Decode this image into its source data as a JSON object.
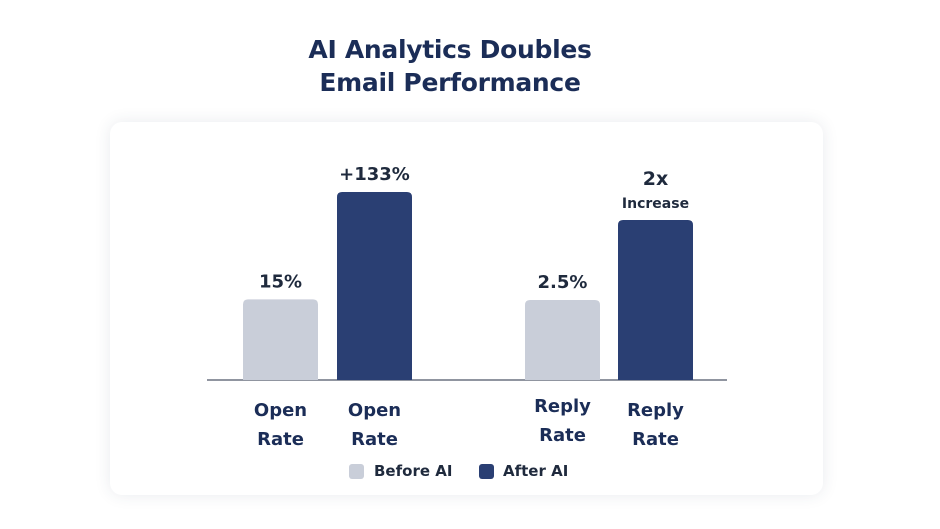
{
  "title_lines": [
    "AI Analytics Doubles",
    "Email Performance"
  ],
  "colors": {
    "before": "#c9ced9",
    "after": "#2a3f73",
    "title": "#1b2d57",
    "axis": "#6b7280"
  },
  "chart_data": {
    "type": "bar",
    "title": "AI Analytics Doubles Email Performance",
    "groups": [
      {
        "name": "Open Rate",
        "bars": [
          {
            "series": "Before AI",
            "category": [
              "Open",
              "Rate"
            ],
            "value": 15,
            "label": [
              "15%"
            ]
          },
          {
            "series": "After AI",
            "category": [
              "Open",
              "Rate"
            ],
            "value": 35,
            "label": [
              "+133%"
            ]
          }
        ]
      },
      {
        "name": "Reply Rate",
        "bars": [
          {
            "series": "Before AI",
            "category": [
              "Reply",
              "Rate"
            ],
            "value": 2.5,
            "label": [
              "2.5%"
            ]
          },
          {
            "series": "After AI",
            "category": [
              "Reply",
              "Rate"
            ],
            "value": 5,
            "label": [
              "2x",
              "Increase"
            ]
          }
        ]
      }
    ],
    "legend": [
      {
        "name": "Before AI",
        "color": "#c9ced9"
      },
      {
        "name": "After AI",
        "color": "#2a3f73"
      }
    ],
    "legend_position": "bottom-center",
    "grid": false
  }
}
